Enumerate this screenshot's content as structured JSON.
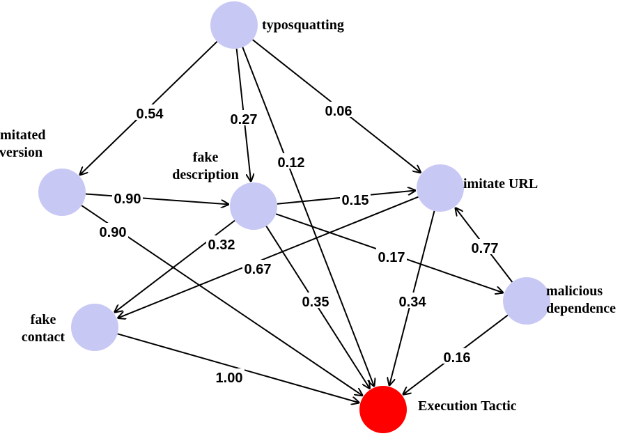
{
  "nodes": [
    {
      "id": "typosquatting",
      "label": [
        "typosquatting"
      ],
      "color": "#c8c8f5"
    },
    {
      "id": "imitated_version",
      "label": [
        "imitated",
        "version"
      ],
      "color": "#c8c8f5"
    },
    {
      "id": "fake_description",
      "label": [
        "fake",
        "description"
      ],
      "color": "#c8c8f5"
    },
    {
      "id": "imitate_url",
      "label": [
        "imitate URL"
      ],
      "color": "#c8c8f5"
    },
    {
      "id": "fake_contact",
      "label": [
        "fake",
        "contact"
      ],
      "color": "#c8c8f5"
    },
    {
      "id": "malicious_dependence",
      "label": [
        "malicious",
        "dependence"
      ],
      "color": "#c8c8f5"
    },
    {
      "id": "execution_tactic",
      "label": [
        "Execution Tactic"
      ],
      "color": "#ff0000"
    }
  ],
  "edges": [
    {
      "from": "typosquatting",
      "to": "imitated_version",
      "weight": "0.54"
    },
    {
      "from": "typosquatting",
      "to": "fake_description",
      "weight": "0.27"
    },
    {
      "from": "typosquatting",
      "to": "execution_tactic",
      "weight": "0.12"
    },
    {
      "from": "typosquatting",
      "to": "imitate_url",
      "weight": "0.06"
    },
    {
      "from": "imitated_version",
      "to": "fake_description",
      "weight": "0.90"
    },
    {
      "from": "imitated_version",
      "to": "execution_tactic",
      "weight": "0.90"
    },
    {
      "from": "fake_description",
      "to": "imitate_url",
      "weight": "0.15"
    },
    {
      "from": "fake_description",
      "to": "fake_contact",
      "weight": "0.32"
    },
    {
      "from": "fake_description",
      "to": "execution_tactic",
      "weight": "0.35"
    },
    {
      "from": "fake_description",
      "to": "malicious_dependence",
      "weight": "0.17"
    },
    {
      "from": "imitate_url",
      "to": "fake_contact",
      "weight": "0.67"
    },
    {
      "from": "imitate_url",
      "to": "execution_tactic",
      "weight": "0.34"
    },
    {
      "from": "malicious_dependence",
      "to": "imitate_url",
      "weight": "0.77"
    },
    {
      "from": "malicious_dependence",
      "to": "execution_tactic",
      "weight": "0.16"
    },
    {
      "from": "fake_contact",
      "to": "execution_tactic",
      "weight": "1.00"
    }
  ]
}
